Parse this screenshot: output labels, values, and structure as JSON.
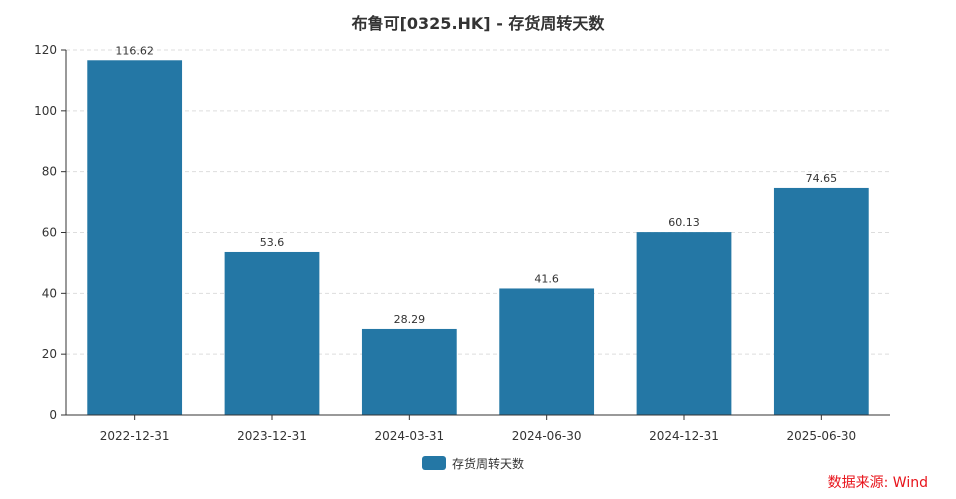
{
  "chart_data": {
    "type": "bar",
    "title": "布鲁可[0325.HK] - 存货周转天数",
    "categories": [
      "2022-12-31",
      "2023-12-31",
      "2024-03-31",
      "2024-06-30",
      "2024-12-31",
      "2025-06-30"
    ],
    "series": [
      {
        "name": "存货周转天数",
        "values": [
          116.62,
          53.6,
          28.29,
          41.6,
          60.13,
          74.65
        ]
      }
    ],
    "data_labels": [
      "116.62",
      "53.6",
      "28.29",
      "41.6",
      "60.13",
      "74.65"
    ],
    "ylim": [
      0,
      120
    ],
    "yticks": [
      0,
      20,
      40,
      60,
      80,
      100,
      120
    ],
    "grid": true,
    "legend_position": "bottom-center",
    "bar_color": "#2477a5"
  },
  "source_note": "数据来源: Wind"
}
